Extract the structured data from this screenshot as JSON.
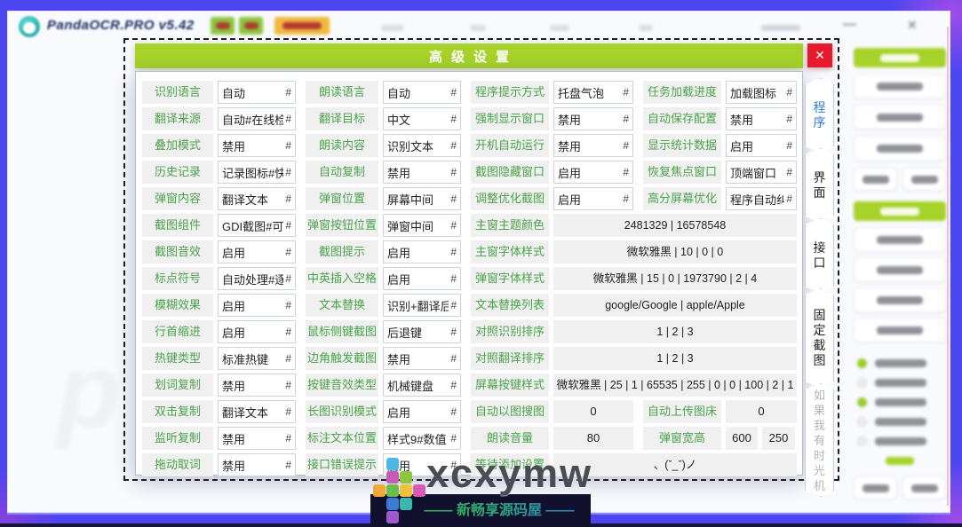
{
  "colors": {
    "frame_blue": "#4b46f0",
    "header_green": "#a6d229",
    "label_green": "#4aa34a",
    "close_red": "#e8192c",
    "tab_active_blue": "#2e7cd6"
  },
  "window": {
    "title": "PandaOCR.PRO v5.42",
    "minimize_glyph": "—",
    "close_glyph": "✕"
  },
  "background": {
    "big_letter": "p"
  },
  "watermark": {
    "logo_text": "xcxymw",
    "subtitle": "—— 新畅享源码屋 ——",
    "logo_colors": [
      "#4db7ea",
      "#c85ab8",
      "#8cc63f",
      "#f0a83c",
      "#6abf4a",
      "#f0c23c",
      "#d75bb0",
      "#3a79d8",
      "#39b8b0",
      "#a05ad0"
    ]
  },
  "dialog": {
    "title": "高级设置",
    "close_glyph": "✕",
    "hash": "#",
    "tabs": [
      {
        "label": "程序",
        "state": "active"
      },
      {
        "label": "界面",
        "state": "normal"
      },
      {
        "label": "接口",
        "state": "normal"
      },
      {
        "label": "固定截图",
        "state": "normal"
      },
      {
        "label": "如果我有时光机",
        "state": "disabled"
      }
    ],
    "rows": [
      [
        {
          "t": "f",
          "l": "识别语言",
          "v": "自动"
        },
        {
          "t": "f",
          "l": "朗读语言",
          "v": "自动"
        },
        {
          "t": "f",
          "l": "程序提示方式",
          "v": "托盘气泡"
        },
        {
          "t": "f",
          "l": "任务加载进度",
          "v": "加载图标"
        }
      ],
      [
        {
          "t": "f",
          "l": "翻译来源",
          "v": "自动#在线检"
        },
        {
          "t": "f",
          "l": "翻译目标",
          "v": "中文"
        },
        {
          "t": "f",
          "l": "强制显示窗口",
          "v": "禁用"
        },
        {
          "t": "f",
          "l": "自动保存配置",
          "v": "禁用"
        }
      ],
      [
        {
          "t": "f",
          "l": "叠加模式",
          "v": "禁用"
        },
        {
          "t": "f",
          "l": "朗读内容",
          "v": "识别文本"
        },
        {
          "t": "f",
          "l": "开机自动运行",
          "v": "禁用"
        },
        {
          "t": "f",
          "l": "显示统计数据",
          "v": "启用"
        }
      ],
      [
        {
          "t": "f",
          "l": "历史记录",
          "v": "记录图标#快"
        },
        {
          "t": "f",
          "l": "自动复制",
          "v": "禁用"
        },
        {
          "t": "f",
          "l": "截图隐藏窗口",
          "v": "启用"
        },
        {
          "t": "f",
          "l": "恢复焦点窗口",
          "v": "顶端窗口"
        }
      ],
      [
        {
          "t": "f",
          "l": "弹窗内容",
          "v": "翻译文本"
        },
        {
          "t": "f",
          "l": "弹窗位置",
          "v": "屏幕中间"
        },
        {
          "t": "f",
          "l": "调整优化截图",
          "v": "启用"
        },
        {
          "t": "f",
          "l": "高分屏幕优化",
          "v": "程序自动纠正"
        }
      ],
      [
        {
          "t": "f",
          "l": "截图组件",
          "v": "GDI截图#可识"
        },
        {
          "t": "f",
          "l": "弹窗按钮位置",
          "v": "弹窗中间"
        },
        {
          "t": "w",
          "l": "主窗主题颜色",
          "v": "2481329 | 16578548"
        }
      ],
      [
        {
          "t": "f",
          "l": "截图音效",
          "v": "启用"
        },
        {
          "t": "f",
          "l": "截图提示",
          "v": "启用"
        },
        {
          "t": "w",
          "l": "主窗字体样式",
          "v": "微软雅黑 | 10 | 0 | 0"
        }
      ],
      [
        {
          "t": "f",
          "l": "标点符号",
          "v": "自动处理#逐"
        },
        {
          "t": "f",
          "l": "中英插入空格",
          "v": "启用"
        },
        {
          "t": "w",
          "l": "弹窗字体样式",
          "v": "微软雅黑 | 15 | 0 | 1973790 | 2 | 4"
        }
      ],
      [
        {
          "t": "f",
          "l": "模糊效果",
          "v": "启用"
        },
        {
          "t": "f",
          "l": "文本替换",
          "v": "识别+翻译后"
        },
        {
          "t": "w",
          "l": "文本替换列表",
          "v": "google/Google | apple/Apple"
        }
      ],
      [
        {
          "t": "f",
          "l": "行首缩进",
          "v": "启用"
        },
        {
          "t": "f",
          "l": "鼠标侧键截图",
          "v": "后退键"
        },
        {
          "t": "w",
          "l": "对照识别排序",
          "v": "1 | 2 | 3"
        }
      ],
      [
        {
          "t": "f",
          "l": "热键类型",
          "v": "标准热键"
        },
        {
          "t": "f",
          "l": "边角触发截图",
          "v": "禁用"
        },
        {
          "t": "w",
          "l": "对照翻译排序",
          "v": "1 | 2 | 3"
        }
      ],
      [
        {
          "t": "f",
          "l": "划词复制",
          "v": "禁用"
        },
        {
          "t": "f",
          "l": "按键音效类型",
          "v": "机械键盘"
        },
        {
          "t": "w",
          "l": "屏幕按键样式",
          "v": "微软雅黑 | 25 | 1 | 65535 | 255 | 0 | 0 | 100 | 2 | 1"
        }
      ],
      [
        {
          "t": "f",
          "l": "双击复制",
          "v": "翻译文本"
        },
        {
          "t": "f",
          "l": "长图识别模式",
          "v": "启用"
        },
        {
          "t": "s",
          "l": "自动以图搜图",
          "v": "0"
        },
        {
          "t": "s",
          "l": "自动上传图床",
          "v": "0"
        }
      ],
      [
        {
          "t": "f",
          "l": "监听复制",
          "v": "禁用"
        },
        {
          "t": "f",
          "l": "标注文本位置",
          "v": "样式9#数值"
        },
        {
          "t": "s",
          "l": "朗读音量",
          "v": "80"
        },
        {
          "t": "p",
          "l": "弹窗宽高",
          "v": "600",
          "v2": "250"
        }
      ],
      [
        {
          "t": "f",
          "l": "拖动取词",
          "v": "禁用"
        },
        {
          "t": "f",
          "l": "接口错误提示",
          "v": "启用"
        },
        {
          "t": "w",
          "l": "等待添加设置",
          "v": "、(ˇ_ˇ)ノ"
        }
      ]
    ]
  }
}
